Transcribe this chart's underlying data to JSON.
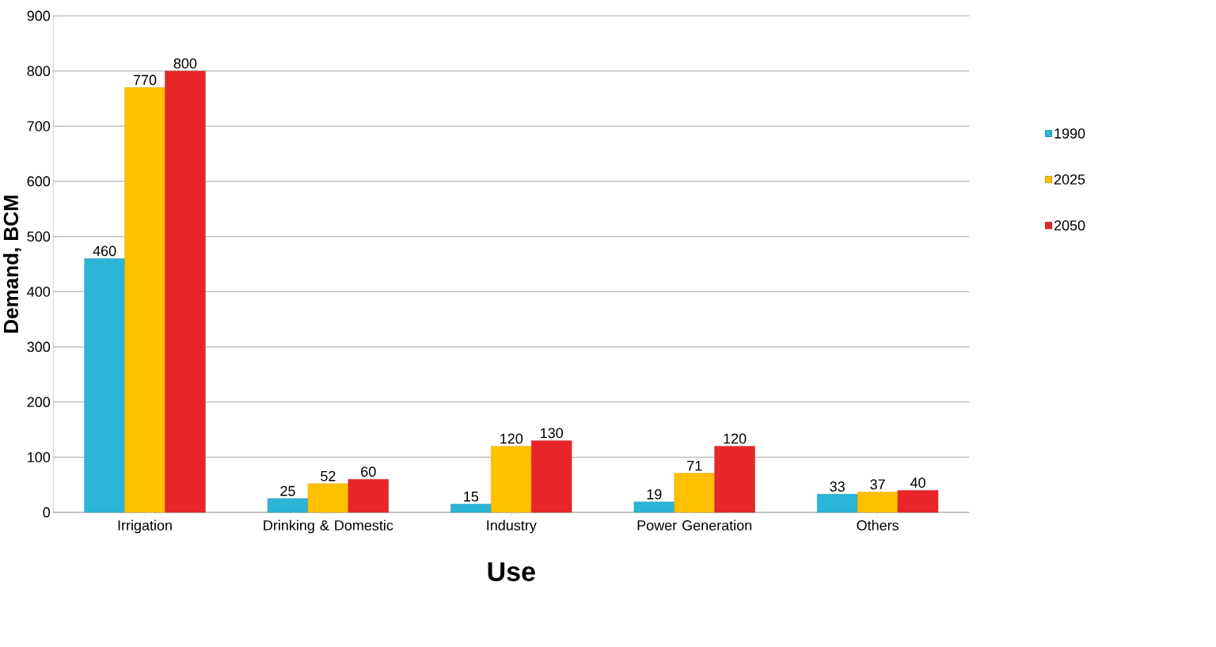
{
  "chart_data": {
    "type": "bar",
    "xlabel": "Use",
    "ylabel": "Demand, BCM",
    "categories": [
      "Irrigation",
      "Drinking & Domestic",
      "Industry",
      "Power Generation",
      "Others"
    ],
    "series": [
      {
        "name": "1990",
        "color": "#2bb5d6",
        "values": [
          460,
          25,
          15,
          19,
          33
        ]
      },
      {
        "name": "2025",
        "color": "#ffc000",
        "values": [
          770,
          52,
          120,
          71,
          37
        ]
      },
      {
        "name": "2050",
        "color": "#e8262a",
        "values": [
          800,
          60,
          130,
          120,
          40
        ]
      }
    ],
    "ylim": [
      0,
      900
    ],
    "yticks": [
      0,
      100,
      200,
      300,
      400,
      500,
      600,
      700,
      800,
      900
    ],
    "grid": "y",
    "legend": "right",
    "data_labels": true
  }
}
